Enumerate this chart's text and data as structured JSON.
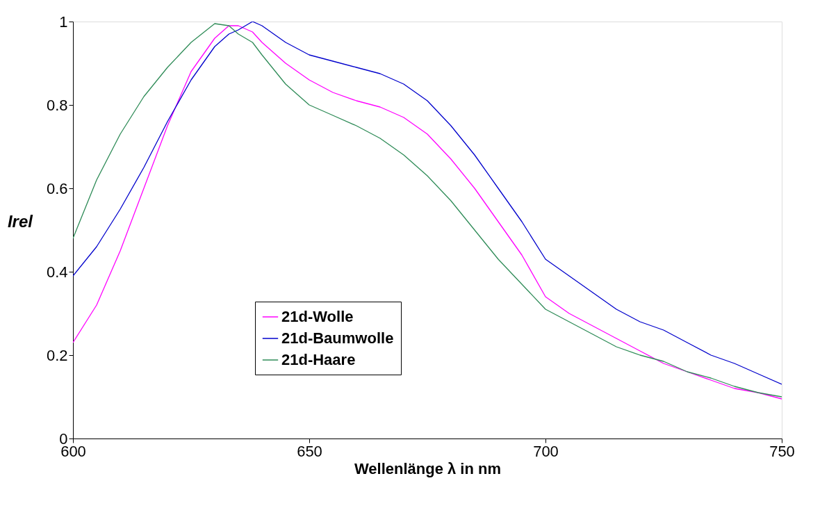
{
  "chart_data": {
    "type": "line",
    "xlabel": "Wellenlänge λ in nm",
    "ylabel": "Irel",
    "x": [
      600,
      605,
      610,
      615,
      620,
      625,
      630,
      633,
      635,
      638,
      640,
      645,
      650,
      655,
      660,
      665,
      670,
      675,
      680,
      685,
      690,
      695,
      700,
      705,
      710,
      715,
      720,
      725,
      730,
      735,
      740,
      745,
      750
    ],
    "series": [
      {
        "name": "21d-Wolle",
        "color": "#ff00ff",
        "values": [
          0.23,
          0.32,
          0.45,
          0.6,
          0.75,
          0.88,
          0.96,
          0.99,
          0.99,
          0.975,
          0.95,
          0.9,
          0.86,
          0.83,
          0.81,
          0.795,
          0.77,
          0.73,
          0.67,
          0.6,
          0.52,
          0.44,
          0.34,
          0.3,
          0.27,
          0.24,
          0.21,
          0.18,
          0.16,
          0.14,
          0.12,
          0.11,
          0.095
        ]
      },
      {
        "name": "21d-Baumwolle",
        "color": "#0000cc",
        "values": [
          0.39,
          0.46,
          0.55,
          0.65,
          0.76,
          0.86,
          0.94,
          0.97,
          0.98,
          1.0,
          0.99,
          0.95,
          0.92,
          0.905,
          0.89,
          0.875,
          0.85,
          0.81,
          0.75,
          0.68,
          0.6,
          0.52,
          0.43,
          0.39,
          0.35,
          0.31,
          0.28,
          0.26,
          0.23,
          0.2,
          0.18,
          0.155,
          0.13
        ]
      },
      {
        "name": "21d-Haare",
        "color": "#2e8b57",
        "values": [
          0.48,
          0.62,
          0.73,
          0.82,
          0.89,
          0.95,
          0.995,
          0.99,
          0.97,
          0.95,
          0.92,
          0.85,
          0.8,
          0.775,
          0.75,
          0.72,
          0.68,
          0.63,
          0.57,
          0.5,
          0.43,
          0.37,
          0.31,
          0.28,
          0.25,
          0.22,
          0.2,
          0.185,
          0.16,
          0.145,
          0.125,
          0.11,
          0.1
        ]
      }
    ],
    "xlim": [
      600,
      750
    ],
    "xticks": [
      600,
      650,
      700,
      750
    ],
    "ylim": [
      0,
      1
    ],
    "yticks": [
      0,
      0.2,
      0.4,
      0.6,
      0.8,
      1
    ],
    "grid": false,
    "legend": "bottom left",
    "line_style": "solid",
    "marker": "none"
  }
}
